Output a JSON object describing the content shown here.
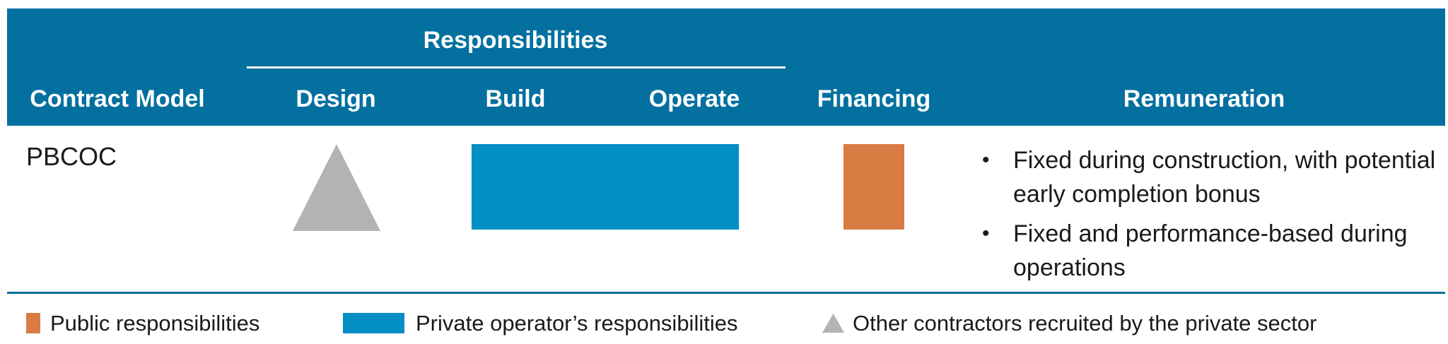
{
  "colors": {
    "header_bg": "#03709f",
    "public": "#d97c43",
    "private_operator": "#038ec4",
    "other_contractors": "#b3b3b3"
  },
  "header": {
    "responsibilities_label": "Responsibilities",
    "columns": {
      "contract_model": "Contract Model",
      "design": "Design",
      "build": "Build",
      "operate": "Operate",
      "financing": "Financing",
      "remuneration": "Remuneration"
    }
  },
  "row": {
    "model": "PBCOC",
    "design": "other-contractors",
    "build_operate": "private-operator",
    "financing": "public",
    "remuneration": [
      "Fixed during construction, with potential early completion bonus",
      "Fixed and performance-based during operations"
    ]
  },
  "legend": {
    "public": "Public responsibilities",
    "private_operator": "Private operator’s responsibilities",
    "other_contractors": "Other contractors recruited by the private sector"
  },
  "icons": {
    "public": "orange-square-icon",
    "private_operator": "blue-rectangle-icon",
    "other_contractors": "gray-triangle-icon",
    "bullet": "bullet-icon"
  }
}
